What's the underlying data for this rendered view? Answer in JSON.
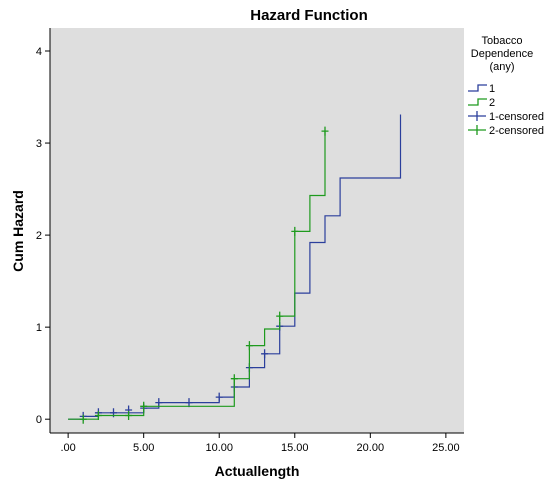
{
  "chart_data": {
    "type": "line",
    "title": "Hazard Function",
    "xlabel": "Actuallength",
    "ylabel": "Cum Hazard",
    "xlim": [
      -1.2,
      26.2
    ],
    "ylim": [
      -0.15,
      4.25
    ],
    "x_ticks": [
      0,
      5,
      10,
      15,
      20,
      25
    ],
    "x_tick_labels": [
      ".00",
      "5.00",
      "10.00",
      "15.00",
      "20.00",
      "25.00"
    ],
    "y_ticks": [
      0,
      1,
      2,
      3,
      4
    ],
    "y_tick_labels": [
      "0",
      "1",
      "2",
      "3",
      "4"
    ],
    "grid": false,
    "legend": {
      "title": "Tobacco Dependence (any)",
      "title_lines": [
        "Tobacco",
        "Dependence",
        "(any)"
      ],
      "position": "right",
      "entries": [
        "1",
        "2",
        "1-censored",
        "2-censored"
      ]
    },
    "series": [
      {
        "name": "1",
        "color": "#2b3f9c",
        "step_x": [
          0,
          1,
          2,
          5,
          6,
          10,
          11,
          12,
          13,
          14,
          15,
          16,
          17,
          18,
          22,
          22
        ],
        "step_y": [
          0,
          0.03,
          0.07,
          0.12,
          0.18,
          0.24,
          0.35,
          0.56,
          0.71,
          1.01,
          1.37,
          1.92,
          2.21,
          2.62,
          2.62,
          3.31
        ],
        "censored_x": [
          1,
          2,
          3,
          4,
          5,
          6,
          8,
          10,
          11,
          12,
          13,
          14
        ],
        "censored_y": [
          0.03,
          0.07,
          0.07,
          0.1,
          0.12,
          0.18,
          0.18,
          0.24,
          0.35,
          0.56,
          0.71,
          1.01
        ]
      },
      {
        "name": "2",
        "color": "#1e9a1e",
        "step_x": [
          0,
          2,
          5,
          11,
          12,
          13,
          14,
          15,
          16,
          17
        ],
        "step_y": [
          0,
          0.04,
          0.14,
          0.44,
          0.8,
          0.98,
          1.12,
          2.04,
          2.43,
          3.13
        ],
        "censored_x": [
          1,
          2,
          4,
          5,
          11,
          12,
          14,
          15,
          17
        ],
        "censored_y": [
          0,
          0.04,
          0.04,
          0.14,
          0.44,
          0.8,
          1.12,
          2.04,
          3.13
        ]
      }
    ]
  }
}
